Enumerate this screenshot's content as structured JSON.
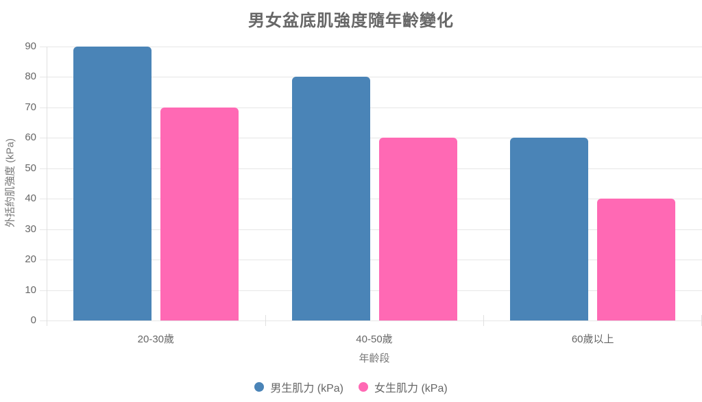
{
  "chart_data": {
    "type": "bar",
    "title": "男女盆底肌強度隨年齡變化",
    "categories": [
      "20-30歲",
      "40-50歲",
      "60歲以上"
    ],
    "series": [
      {
        "name": "男生肌力 (kPa)",
        "color": "#4a84b7",
        "values": [
          90,
          80,
          60
        ]
      },
      {
        "name": "女生肌力 (kPa)",
        "color": "#ff69b4",
        "values": [
          70,
          60,
          40
        ]
      }
    ],
    "xlabel": "年齡段",
    "ylabel": "外括約肌強度 (kPa)",
    "ylim": [
      0,
      90
    ],
    "ytick_step": 10,
    "yticks": [
      0,
      10,
      20,
      30,
      40,
      50,
      60,
      70,
      80,
      90
    ],
    "grid": "horizontal",
    "legend_position": "bottom"
  },
  "colors": {
    "grid": "#e6e6e6",
    "axis": "#e0e0e0",
    "tick_text": "#666666",
    "axis_title_text": "#777777",
    "title_text": "#666666",
    "background": "#ffffff"
  }
}
